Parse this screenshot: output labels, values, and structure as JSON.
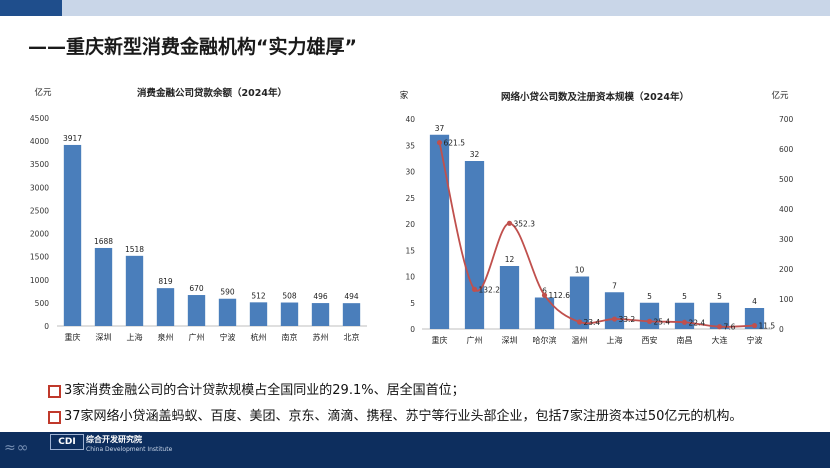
{
  "title": "——重庆新型消费金融机构“实力雄厚”",
  "chart_data": [
    {
      "type": "bar",
      "title": "消费金融公司贷款余额（2024年）",
      "ylabel": "亿元",
      "ylim": [
        0,
        4500
      ],
      "yticks": [
        0,
        500,
        1000,
        1500,
        2000,
        2500,
        3000,
        3500,
        4000,
        4500
      ],
      "categories": [
        "重庆",
        "深圳",
        "上海",
        "泉州",
        "广州",
        "宁波",
        "杭州",
        "南京",
        "苏州",
        "北京"
      ],
      "values": [
        3917,
        1688,
        1518,
        819,
        670,
        590,
        512,
        508,
        496,
        494
      ],
      "colors": {
        "bar": "#4a7ebb"
      }
    },
    {
      "type": "bar",
      "title": "网络小贷公司数及注册资本规模（2024年）",
      "ylabel": "家",
      "y2label": "亿元",
      "ylim": [
        0,
        40
      ],
      "yticks": [
        0,
        5,
        10,
        15,
        20,
        25,
        30,
        35,
        40
      ],
      "y2lim": [
        0,
        700
      ],
      "y2ticks": [
        0,
        100,
        200,
        300,
        400,
        500,
        600,
        700
      ],
      "categories": [
        "重庆",
        "广州",
        "深圳",
        "哈尔滨",
        "温州",
        "上海",
        "西安",
        "南昌",
        "大连",
        "宁波"
      ],
      "series": [
        {
          "type": "bar",
          "values": [
            37,
            32,
            12,
            6,
            10,
            7,
            5,
            5,
            5,
            4
          ]
        },
        {
          "type": "line",
          "axis": "right",
          "values": [
            621.5,
            132.2,
            352.3,
            112.6,
            23.4,
            33.2,
            25.4,
            22.4,
            7.6,
            11.5
          ]
        }
      ],
      "colors": {
        "bar": "#4a7ebb",
        "line": "#c0504d"
      }
    }
  ],
  "bullets": [
    "3家消费金融公司的合计贷款规模占全国同业的29.1%、居全国首位；",
    "37家网络小贷涵盖蚂蚁、百度、美团、京东、滴滴、携程、苏宁等行业头部企业，包括7家注册资本过50亿元的机构。"
  ],
  "footer": {
    "logo": "CDI",
    "name": "综合开发研究院",
    "subtitle": "China Development Institute"
  }
}
